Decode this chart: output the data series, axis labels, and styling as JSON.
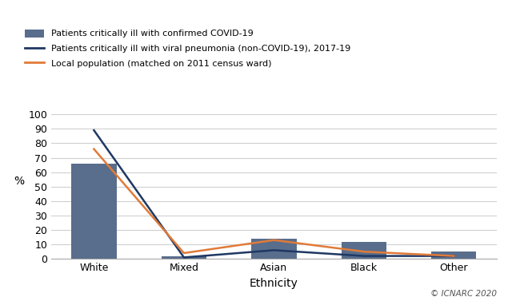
{
  "categories": [
    "White",
    "Mixed",
    "Asian",
    "Black",
    "Other"
  ],
  "bar_values": [
    66,
    2,
    14,
    12,
    5
  ],
  "line1_values": [
    89,
    1,
    6,
    2,
    2
  ],
  "line2_values": [
    76,
    4,
    13,
    5,
    2
  ],
  "bar_color": "#596d8c",
  "line1_color": "#1f3864",
  "line2_color": "#e07b39",
  "ylabel": "%",
  "xlabel": "Ethnicity",
  "ylim": [
    0,
    100
  ],
  "yticks": [
    0,
    10,
    20,
    30,
    40,
    50,
    60,
    70,
    80,
    90,
    100
  ],
  "legend_labels": [
    "Patients critically ill with confirmed COVID-19",
    "Patients critically ill with viral pneumonia (non-COVID-19), 2017-19",
    "Local population (matched on 2011 census ward)"
  ],
  "copyright": "© ICNARC 2020",
  "background_color": "#ffffff",
  "plot_bg_color": "#ffffff",
  "grid_color": "#d0d0d0"
}
